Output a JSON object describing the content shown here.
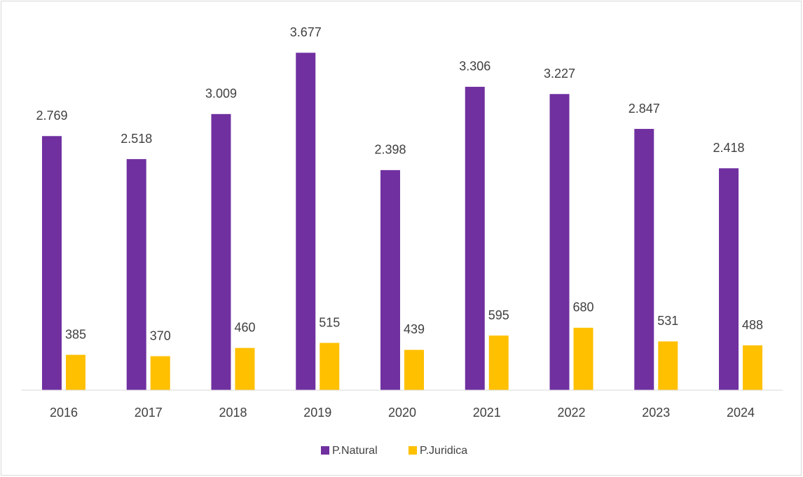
{
  "chart_data": {
    "type": "bar",
    "categories": [
      "2016",
      "2017",
      "2018",
      "2019",
      "2020",
      "2021",
      "2022",
      "2023",
      "2024"
    ],
    "series": [
      {
        "name": "P.Natural",
        "color": "#7030a0",
        "values": [
          2769,
          2518,
          3009,
          3677,
          2398,
          3306,
          3227,
          2847,
          2418
        ],
        "value_labels": [
          "2.769",
          "2.518",
          "3.009",
          "3.677",
          "2.398",
          "3.306",
          "3.227",
          "2.847",
          "2.418"
        ]
      },
      {
        "name": "P.Juridica",
        "color": "#ffc000",
        "values": [
          385,
          370,
          460,
          515,
          439,
          595,
          680,
          531,
          488
        ]
      }
    ],
    "ylim": [
      0,
      4000
    ],
    "legend": "bottom"
  }
}
